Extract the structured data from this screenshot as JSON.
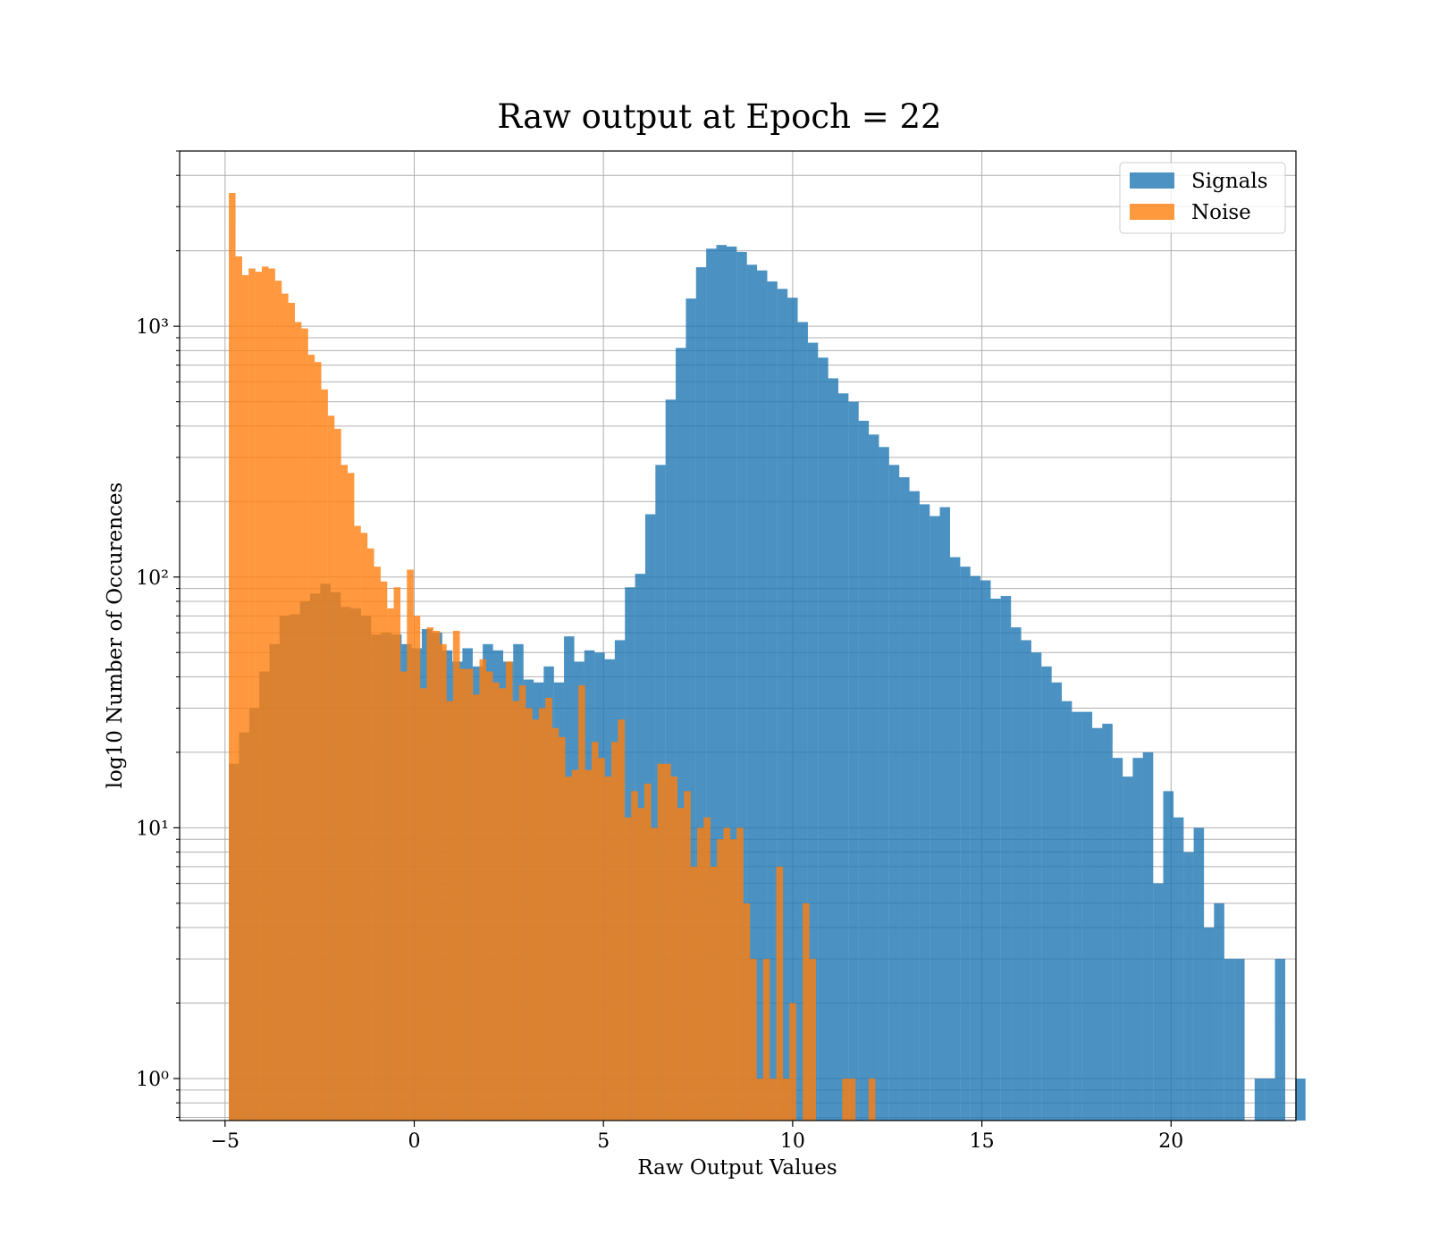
{
  "chart_data": {
    "type": "histogram",
    "title": "Raw output at Epoch = 22",
    "xlabel": "Raw Output Values",
    "ylabel": "log10 Number of Occurences",
    "yscale": "log",
    "grid": true,
    "legend_position": "upper right",
    "xlim": [
      -6.2,
      23.3
    ],
    "ylim": [
      0.68,
      5000
    ],
    "x_ticks": [
      -5,
      0,
      5,
      10,
      15,
      20
    ],
    "x_tick_labels": [
      "−5",
      "0",
      "5",
      "10",
      "15",
      "20"
    ],
    "y_ticks": [
      1,
      10,
      100,
      1000
    ],
    "y_tick_labels": [
      "10⁰",
      "10¹",
      "10²",
      "10³"
    ],
    "series": [
      {
        "name": "Signals",
        "color": "#1f77b4",
        "bin_start": -4.9,
        "bin_width": 0.2684,
        "counts": [
          18,
          24,
          30,
          42,
          54,
          70,
          71,
          80,
          86,
          94,
          87,
          76,
          75,
          70,
          59,
          60,
          59,
          54,
          52,
          62,
          60,
          51,
          46,
          52,
          44,
          54,
          51,
          46,
          54,
          39,
          38,
          44,
          38,
          58,
          46,
          51,
          50,
          47,
          56,
          91,
          103,
          178,
          280,
          510,
          820,
          1290,
          1720,
          2040,
          2110,
          2080,
          1980,
          1760,
          1670,
          1510,
          1410,
          1300,
          1040,
          860,
          750,
          620,
          540,
          500,
          420,
          370,
          330,
          280,
          250,
          220,
          195,
          175,
          190,
          120,
          110,
          101,
          97,
          82,
          84,
          63,
          56,
          50,
          44,
          38,
          32,
          29,
          29,
          25,
          26,
          19,
          16,
          19,
          20,
          6,
          14,
          11,
          8,
          10,
          4,
          5,
          3,
          3,
          0,
          1,
          1,
          3,
          0,
          1
        ]
      },
      {
        "name": "Noise",
        "color": "#ff7f0e",
        "bin_start": -4.9,
        "bin_width": 0.1743,
        "counts": [
          3400,
          1900,
          1600,
          1700,
          1650,
          1730,
          1700,
          1520,
          1350,
          1240,
          1040,
          980,
          770,
          720,
          560,
          440,
          390,
          280,
          260,
          160,
          150,
          130,
          110,
          96,
          75,
          91,
          42,
          107,
          70,
          36,
          63,
          61,
          54,
          32,
          61,
          43,
          43,
          34,
          47,
          42,
          38,
          36,
          46,
          32,
          37,
          30,
          27,
          30,
          33,
          25,
          23,
          16,
          17,
          37,
          17,
          22,
          19,
          16,
          22,
          27,
          11,
          14,
          12,
          15,
          10,
          18,
          18,
          16,
          12,
          14,
          7,
          10,
          11,
          7,
          9,
          10,
          9,
          10,
          5,
          3,
          1,
          3,
          1,
          7,
          1,
          2,
          0,
          5,
          3,
          0,
          0,
          0,
          0,
          1,
          1,
          0,
          0,
          1
        ]
      }
    ]
  }
}
